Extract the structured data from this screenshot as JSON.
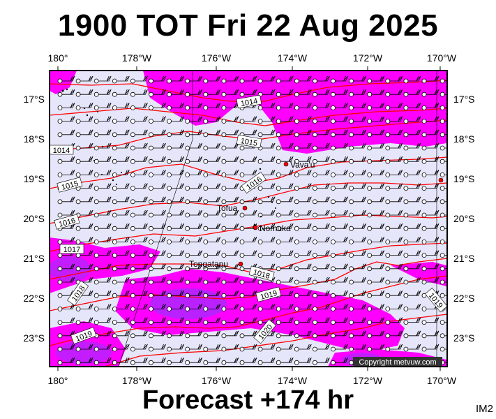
{
  "header": {
    "title": "1900 TOT Fri 22 Aug 2025"
  },
  "footer": {
    "forecast": "Forecast +174 hr",
    "corner_code": "IM2"
  },
  "axes": {
    "lon_labels": [
      "180°",
      "178°W",
      "176°W",
      "174°W",
      "172°W",
      "170°W"
    ],
    "lat_labels": [
      "17°S",
      "18°S",
      "19°S",
      "20°S",
      "21°S",
      "22°S",
      "23°S"
    ]
  },
  "places": [
    {
      "name": "Vava'u",
      "lon": -174.0,
      "lat": -18.65
    },
    {
      "name": "Tofua",
      "lon": -175.05,
      "lat": -19.75
    },
    {
      "name": "Nomuka",
      "lon": -174.8,
      "lat": -20.25
    },
    {
      "name": "Tongatapu",
      "lon": -175.2,
      "lat": -21.15
    }
  ],
  "isobars": [
    {
      "label": "1014"
    },
    {
      "label": "1015"
    },
    {
      "label": "1016"
    },
    {
      "label": "1017"
    },
    {
      "label": "1018"
    },
    {
      "label": "1019"
    },
    {
      "label": "1020"
    }
  ],
  "copyright": "Copyright metvuw.com",
  "colors": {
    "land_bg": "#e6e6fa",
    "wind_magenta": "#ff00ff",
    "wind_purple": "#9b30ff",
    "isobar": "#ff0000",
    "barb": "#000000"
  },
  "map_extent": {
    "lon_min": -180.2,
    "lon_max": -169.8,
    "lat_min": -23.7,
    "lat_max": -16.3
  }
}
